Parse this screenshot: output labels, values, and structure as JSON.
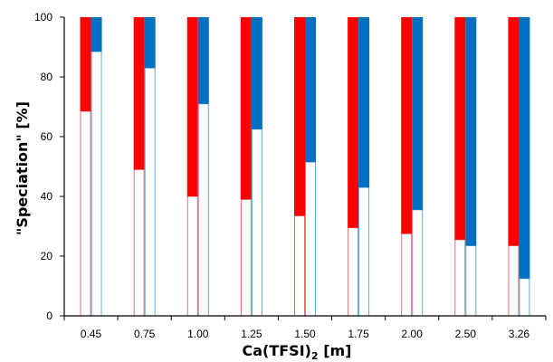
{
  "chart_data": {
    "type": "bar",
    "stacked_pairs": true,
    "ylabel": "\"Speciation\" [%]",
    "xlabel_main": "Ca(TFSI)",
    "xlabel_sub": "2",
    "xlabel_unit": " [m]",
    "ylim": [
      0,
      100
    ],
    "yticks": [
      0,
      20,
      40,
      60,
      80,
      100
    ],
    "grid": false,
    "categories": [
      "0.45",
      "0.75",
      "1.00",
      "1.25",
      "1.50",
      "1.75",
      "2.00",
      "2.50",
      "3.26"
    ],
    "series": [
      {
        "color": "#ff0000",
        "outline": "#e07070",
        "base_values": [
          68.5,
          49,
          40,
          39,
          33.5,
          29.5,
          27.5,
          25.5,
          23.5
        ]
      },
      {
        "color": "#0070c0",
        "outline": "#5fa8d8",
        "base_values": [
          88.5,
          83,
          71,
          62.5,
          51.5,
          43,
          35.5,
          23.5,
          12.5
        ]
      }
    ]
  }
}
